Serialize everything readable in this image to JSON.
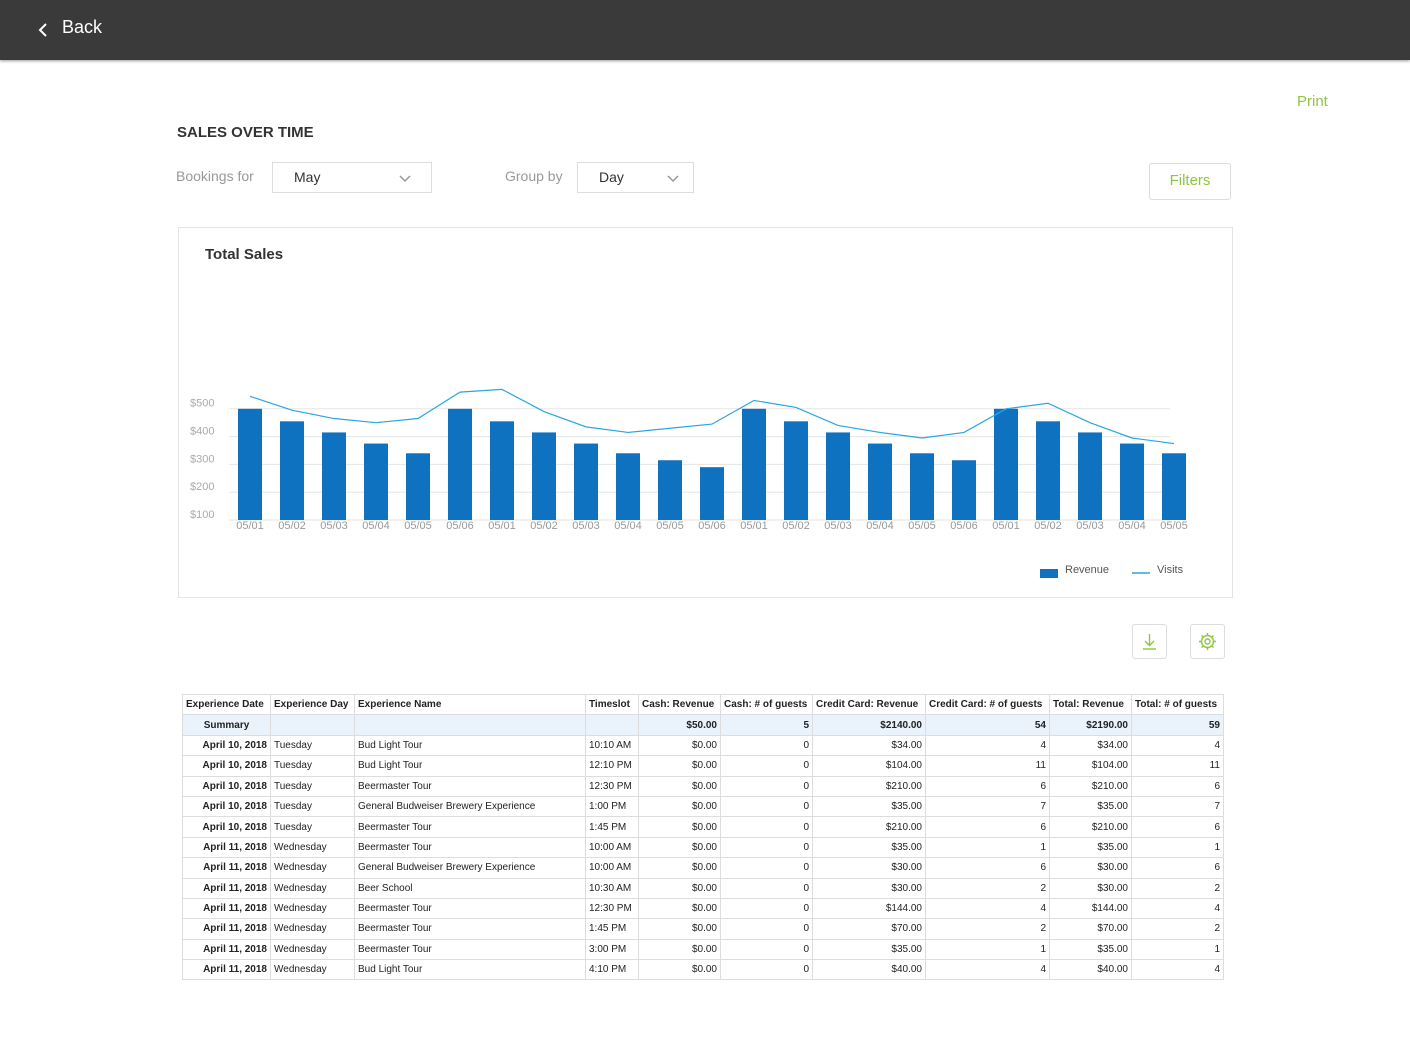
{
  "nav": {
    "back": "Back"
  },
  "print": "Print",
  "heading": "SALES OVER TIME",
  "controls": {
    "bookings_label": "Bookings for",
    "bookings_value": "May",
    "group_label": "Group by",
    "group_value": "Day",
    "filters": "Filters"
  },
  "chart_data": {
    "type": "bar",
    "title": "Total Sales",
    "categories": [
      "05/01",
      "05/02",
      "05/03",
      "05/04",
      "05/05",
      "05/06",
      "05/01",
      "05/02",
      "05/03",
      "05/04",
      "05/05",
      "05/06",
      "05/01",
      "05/02",
      "05/03",
      "05/04",
      "05/05",
      "05/06",
      "05/01",
      "05/02",
      "05/03",
      "05/04",
      "05/05"
    ],
    "series": [
      {
        "name": "Revenue",
        "type": "bar",
        "color": "#0f72c0",
        "values": [
          500,
          455,
          415,
          375,
          340,
          500,
          455,
          415,
          375,
          340,
          315,
          290,
          500,
          455,
          415,
          375,
          340,
          315,
          500,
          455,
          415,
          375,
          340
        ]
      },
      {
        "name": "Visits",
        "type": "line",
        "color": "#2ba6de",
        "values": [
          545,
          495,
          465,
          450,
          465,
          560,
          570,
          490,
          435,
          415,
          430,
          445,
          530,
          505,
          440,
          415,
          395,
          415,
          500,
          520,
          450,
          395,
          375
        ]
      }
    ],
    "ylim": [
      100,
      600
    ],
    "yticks": [
      {
        "value": 100,
        "label": "$100"
      },
      {
        "value": 200,
        "label": "$200"
      },
      {
        "value": 300,
        "label": "$300"
      },
      {
        "value": 400,
        "label": "$400"
      },
      {
        "value": 500,
        "label": "$500"
      }
    ],
    "grid": true,
    "legend": "bottom-right"
  },
  "table": {
    "columns": [
      "Experience Date",
      "Experience Day",
      "Experience Name",
      "Timeslot",
      "Cash: Revenue",
      "Cash: # of guests",
      "Credit Card: Revenue",
      "Credit Card: # of guests",
      "Total: Revenue",
      "Total: # of guests"
    ],
    "summary": [
      "Summary",
      null,
      null,
      null,
      "$50.00",
      "5",
      "$2140.00",
      "54",
      "$2190.00",
      "59"
    ],
    "rows": [
      [
        "April 10, 2018",
        "Tuesday",
        "Bud Light Tour",
        "10:10 AM",
        "$0.00",
        "0",
        "$34.00",
        "4",
        "$34.00",
        "4"
      ],
      [
        "April 10, 2018",
        "Tuesday",
        "Bud Light Tour",
        "12:10 PM",
        "$0.00",
        "0",
        "$104.00",
        "11",
        "$104.00",
        "11"
      ],
      [
        "April 10, 2018",
        "Tuesday",
        "Beermaster Tour",
        "12:30 PM",
        "$0.00",
        "0",
        "$210.00",
        "6",
        "$210.00",
        "6"
      ],
      [
        "April 10, 2018",
        "Tuesday",
        "General Budweiser Brewery Experience",
        "1:00 PM",
        "$0.00",
        "0",
        "$35.00",
        "7",
        "$35.00",
        "7"
      ],
      [
        "April 10, 2018",
        "Tuesday",
        "Beermaster Tour",
        "1:45 PM",
        "$0.00",
        "0",
        "$210.00",
        "6",
        "$210.00",
        "6"
      ],
      [
        "April 11, 2018",
        "Wednesday",
        "Beermaster Tour",
        "10:00 AM",
        "$0.00",
        "0",
        "$35.00",
        "1",
        "$35.00",
        "1"
      ],
      [
        "April 11, 2018",
        "Wednesday",
        "General Budweiser Brewery Experience",
        "10:00 AM",
        "$0.00",
        "0",
        "$30.00",
        "6",
        "$30.00",
        "6"
      ],
      [
        "April 11, 2018",
        "Wednesday",
        "Beer School",
        "10:30 AM",
        "$0.00",
        "0",
        "$30.00",
        "2",
        "$30.00",
        "2"
      ],
      [
        "April 11, 2018",
        "Wednesday",
        "Beermaster Tour",
        "12:30 PM",
        "$0.00",
        "0",
        "$144.00",
        "4",
        "$144.00",
        "4"
      ],
      [
        "April 11, 2018",
        "Wednesday",
        "Beermaster Tour",
        "1:45 PM",
        "$0.00",
        "0",
        "$70.00",
        "2",
        "$70.00",
        "2"
      ],
      [
        "April 11, 2018",
        "Wednesday",
        "Beermaster Tour",
        "3:00 PM",
        "$0.00",
        "0",
        "$35.00",
        "1",
        "$35.00",
        "1"
      ],
      [
        "April 11, 2018",
        "Wednesday",
        "Bud Light Tour",
        "4:10 PM",
        "$0.00",
        "0",
        "$40.00",
        "4",
        "$40.00",
        "4"
      ]
    ]
  }
}
